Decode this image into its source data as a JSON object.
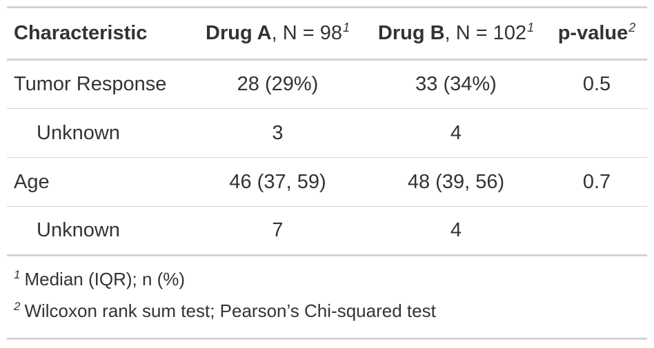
{
  "table": {
    "header": {
      "characteristic": "Characteristic",
      "drug_a_name": "Drug A",
      "drug_a_n": ", N = 98",
      "drug_a_sup": "1",
      "drug_b_name": "Drug B",
      "drug_b_n": ", N = 102",
      "drug_b_sup": "1",
      "pvalue": "p-value",
      "pvalue_sup": "2"
    },
    "rows": [
      {
        "label": "Tumor Response",
        "drug_a": "28 (29%)",
        "drug_b": "33 (34%)",
        "pvalue": "0.5"
      },
      {
        "label": "Unknown",
        "drug_a": "3",
        "drug_b": "4",
        "pvalue": ""
      },
      {
        "label": "Age",
        "drug_a": "46 (37, 59)",
        "drug_b": "48 (39, 56)",
        "pvalue": "0.7"
      },
      {
        "label": "Unknown",
        "drug_a": "7",
        "drug_b": "4",
        "pvalue": ""
      }
    ],
    "footnotes": [
      {
        "mark": "1",
        "text": "Median (IQR); n (%)"
      },
      {
        "mark": "2",
        "text": "Wilcoxon rank sum test; Pearson’s Chi-squared test"
      }
    ]
  }
}
